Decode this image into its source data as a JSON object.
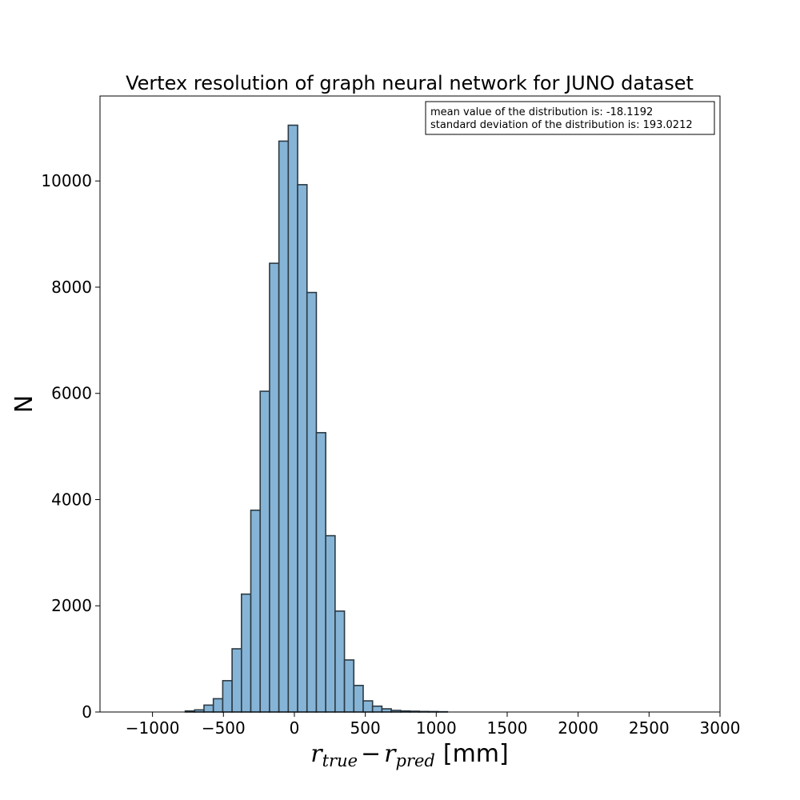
{
  "chart_data": {
    "type": "bar",
    "title": "Vertex resolution of graph neural network for JUNO dataset",
    "xlabel": {
      "r1": "r",
      "sub1": "true",
      "minus": "−",
      "r2": "r",
      "sub2": "pred",
      "unit": "[mm]"
    },
    "ylabel": "N",
    "xlim": [
      -1370,
      3000
    ],
    "ylim": [
      0,
      11600
    ],
    "xticks": [
      -1000,
      -500,
      0,
      500,
      1000,
      1500,
      2000,
      2500,
      3000
    ],
    "xtick_labels": [
      "−1000",
      "−500",
      "0",
      "500",
      "1000",
      "1500",
      "2000",
      "2500",
      "3000"
    ],
    "yticks": [
      0,
      2000,
      4000,
      6000,
      8000,
      10000
    ],
    "ytick_labels": [
      "0",
      "2000",
      "4000",
      "6000",
      "8000",
      "10000"
    ],
    "bar_color": "#86b4d6",
    "edge_color": "#2b3a44",
    "legend_placement": "top-right",
    "grid": false,
    "annotation": [
      "mean value of the distribution is: -18.1192",
      "standard deviation of the distribution is: 193.0212"
    ],
    "bin_start": -1165,
    "bin_width": 66,
    "values": [
      0,
      0,
      0,
      0,
      0,
      0,
      20,
      40,
      130,
      250,
      590,
      1190,
      2220,
      3800,
      6040,
      8450,
      10750,
      11050,
      9930,
      7900,
      5260,
      3320,
      1900,
      980,
      500,
      210,
      110,
      60,
      30,
      20,
      15,
      10,
      8,
      5,
      0,
      0,
      0,
      0,
      0,
      0,
      0,
      0,
      0,
      0,
      0,
      0,
      0,
      0,
      0,
      0,
      0,
      0,
      0,
      0,
      0,
      0,
      0,
      0,
      0,
      0
    ]
  }
}
